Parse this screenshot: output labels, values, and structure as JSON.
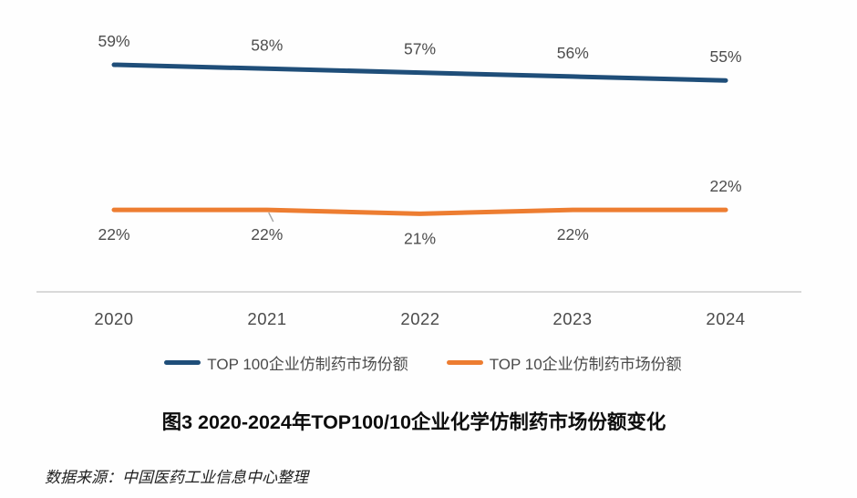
{
  "chart_data": {
    "type": "line",
    "title": "图3 2020-2024年TOP100/10企业化学仿制药市场份额变化",
    "categories": [
      "2020",
      "2021",
      "2022",
      "2023",
      "2024"
    ],
    "series": [
      {
        "name": "TOP 100企业仿制药市场份额",
        "color": "#1F4E79",
        "values": [
          59,
          58,
          57,
          56,
          55
        ],
        "labels": [
          "59%",
          "58%",
          "57%",
          "56%",
          "55%"
        ],
        "label_side": [
          "above",
          "above",
          "above",
          "above",
          "above"
        ],
        "leader_lines": [
          false,
          false,
          false,
          false,
          false
        ]
      },
      {
        "name": "TOP 10企业仿制药市场份额",
        "color": "#ED7D31",
        "values": [
          22,
          22,
          21,
          22,
          22
        ],
        "labels": [
          "22%",
          "22%",
          "21%",
          "22%",
          "22%"
        ],
        "label_side": [
          "below",
          "below",
          "below",
          "below",
          "above"
        ],
        "leader_lines": [
          false,
          true,
          false,
          false,
          false
        ]
      }
    ],
    "xlabel": "",
    "ylabel": "",
    "ylim": [
      0,
      65
    ],
    "grid": false,
    "legend_position": "bottom",
    "axis_line_color": "#D9D9D9",
    "data_label_color": "#4d4d4d"
  },
  "source_note": "数据来源：中国医药工业信息中心整理"
}
